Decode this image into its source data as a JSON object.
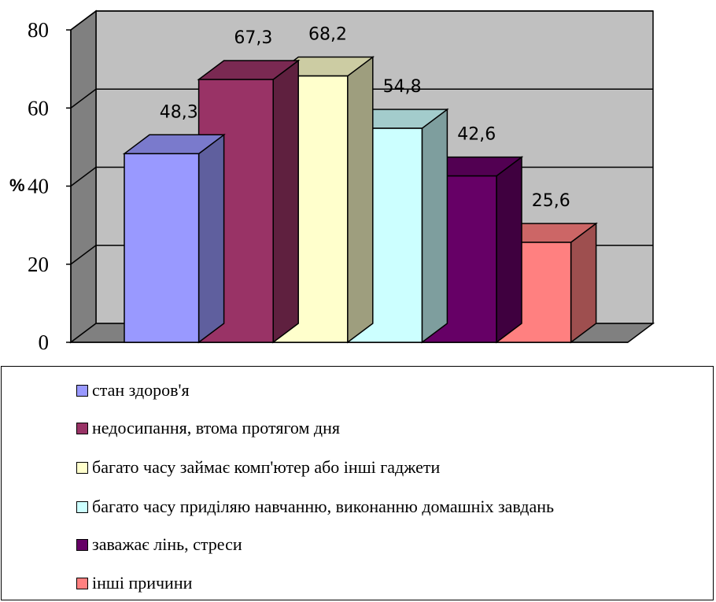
{
  "chart_data": {
    "type": "bar",
    "ylabel": "%",
    "ylim": [
      0,
      80
    ],
    "yticks": [
      0,
      20,
      40,
      60,
      80
    ],
    "grid": true,
    "legend_position": "bottom",
    "series": [
      {
        "name": "стан здоров'я",
        "value": 48.3,
        "label": "48,3",
        "color": "#9999ff"
      },
      {
        "name": "недосипання, втома протягом дня",
        "value": 67.3,
        "label": "67,3",
        "color": "#993366"
      },
      {
        "name": "багато часу займає комп'ютер або інші гаджети",
        "value": 68.2,
        "label": "68,2",
        "color": "#ffffcc"
      },
      {
        "name": "багато часу приділяю навчанню, виконанню домашніх завдань",
        "value": 54.8,
        "label": "54,8",
        "color": "#ccffff"
      },
      {
        "name": "заважає лінь, стреси",
        "value": 42.6,
        "label": "42,6",
        "color": "#660066"
      },
      {
        "name": "інші причини",
        "value": 25.6,
        "label": "25,6",
        "color": "#ff8080"
      }
    ]
  }
}
